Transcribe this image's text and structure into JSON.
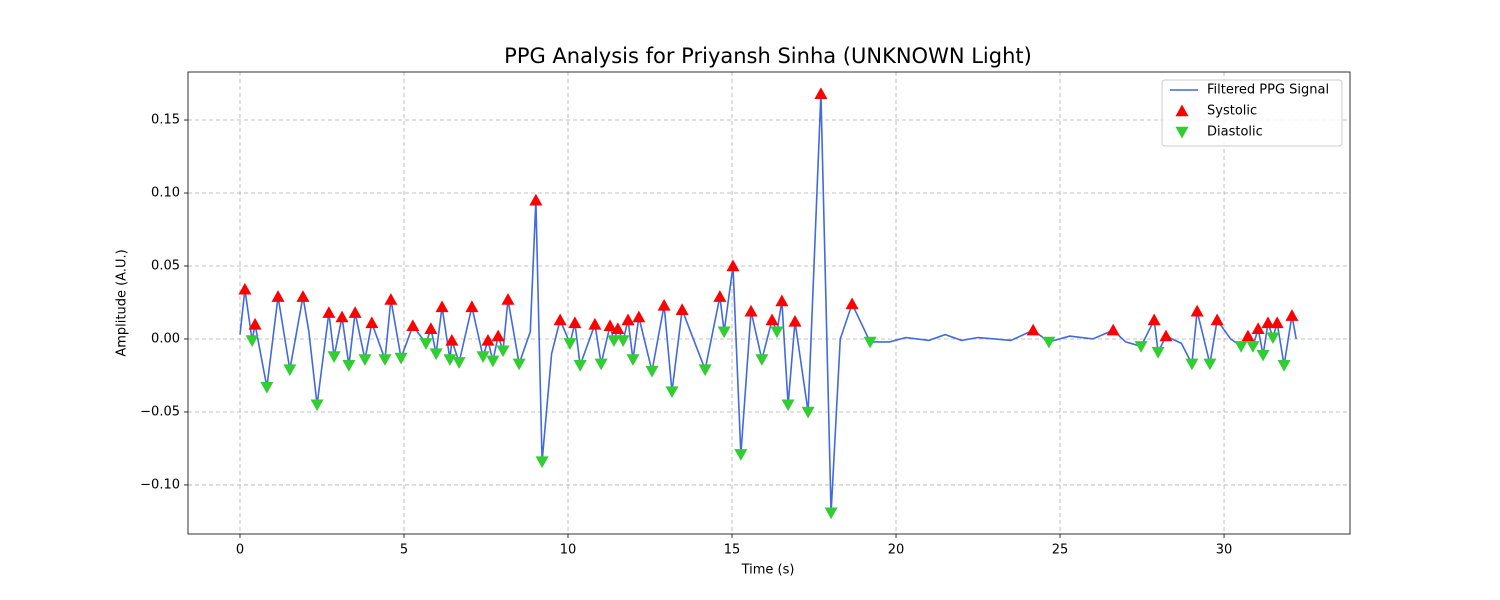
{
  "chart_data": {
    "type": "line",
    "title": "PPG Analysis for Priyansh Sinha (UNKNOWN Light)",
    "x_label": "Time (s)",
    "y_label": "Amplitude (A.U.)",
    "xlim": [
      -1.585,
      33.84
    ],
    "ylim": [
      -0.1336,
      0.1829
    ],
    "xticks": [
      0,
      5,
      10,
      15,
      20,
      25,
      30
    ],
    "yticks": [
      {
        "value": -0.1,
        "label": "−0.10"
      },
      {
        "value": -0.05,
        "label": "−0.05"
      },
      {
        "value": 0,
        "label": "0.00"
      },
      {
        "value": 0.05,
        "label": "0.05"
      },
      {
        "value": 0.1,
        "label": "0.10"
      },
      {
        "value": 0.15,
        "label": "0.15"
      }
    ],
    "grid": true,
    "legend": "upper right",
    "series": [
      {
        "name": "Filtered PPG Signal",
        "type": "line",
        "color": "#4169e1",
        "x": [
          0,
          0.15,
          0.37,
          0.46,
          0.82,
          1.16,
          1.52,
          1.92,
          2.1,
          2.35,
          2.71,
          2.87,
          3.11,
          3.32,
          3.51,
          3.81,
          4.02,
          4.42,
          4.6,
          4.91,
          5.27,
          5.67,
          5.82,
          5.98,
          6.16,
          6.4,
          6.46,
          6.68,
          7.07,
          7.41,
          7.56,
          7.71,
          7.87,
          8.02,
          8.17,
          8.51,
          8.85,
          9.02,
          9.21,
          9.5,
          9.76,
          10.06,
          10.21,
          10.37,
          10.82,
          11.01,
          11.28,
          11.4,
          11.52,
          11.68,
          11.83,
          11.98,
          12.16,
          12.56,
          12.93,
          13.17,
          13.48,
          14.18,
          14.63,
          14.76,
          15.03,
          15.27,
          15.58,
          15.91,
          16.22,
          16.37,
          16.52,
          16.71,
          16.92,
          17.32,
          17.71,
          18.02,
          18.3,
          18.66,
          19.21,
          19.8,
          20.3,
          21.0,
          21.5,
          22.0,
          22.5,
          23.0,
          23.5,
          24.18,
          24.66,
          25.3,
          26.0,
          26.62,
          27.0,
          27.47,
          27.87,
          27.99,
          28.23,
          28.7,
          29.02,
          29.18,
          29.57,
          29.79,
          30.2,
          30.52,
          30.73,
          30.88,
          31.04,
          31.19,
          31.34,
          31.49,
          31.62,
          31.83,
          32.07,
          32.2
        ],
        "values": [
          0.003,
          0.034,
          -0.001,
          0.01,
          -0.033,
          0.029,
          -0.021,
          0.029,
          0.005,
          -0.045,
          0.018,
          -0.012,
          0.015,
          -0.018,
          0.018,
          -0.014,
          0.011,
          -0.014,
          0.027,
          -0.013,
          0.009,
          -0.003,
          0.007,
          -0.01,
          0.022,
          -0.014,
          -0.001,
          -0.016,
          0.022,
          -0.012,
          -0.001,
          -0.015,
          0.002,
          -0.008,
          0.027,
          -0.017,
          0.005,
          0.095,
          -0.084,
          -0.01,
          0.013,
          -0.003,
          0.011,
          -0.018,
          0.01,
          -0.017,
          0.009,
          -0.001,
          0.007,
          -0.001,
          0.013,
          -0.014,
          0.015,
          -0.022,
          0.023,
          -0.036,
          0.02,
          -0.021,
          0.029,
          0.005,
          0.05,
          -0.079,
          0.019,
          -0.014,
          0.013,
          0.005,
          0.026,
          -0.045,
          0.012,
          -0.05,
          0.168,
          -0.119,
          0.0,
          0.024,
          -0.002,
          -0.002,
          0.001,
          -0.001,
          0.003,
          -0.001,
          0.001,
          0.0,
          -0.001,
          0.006,
          -0.002,
          0.002,
          0.0,
          0.006,
          -0.002,
          -0.005,
          0.013,
          -0.009,
          0.002,
          -0.003,
          -0.017,
          0.019,
          -0.017,
          0.013,
          0.0,
          -0.005,
          0.002,
          -0.005,
          0.007,
          -0.011,
          0.011,
          0.001,
          0.011,
          -0.018,
          0.016,
          0.0
        ]
      },
      {
        "name": "Systolic",
        "type": "scatter",
        "marker": "triangle-up",
        "color": "#ff0000",
        "x": [
          0.15,
          0.46,
          1.16,
          1.92,
          2.71,
          3.11,
          3.51,
          4.02,
          4.6,
          5.27,
          5.82,
          6.16,
          6.46,
          7.07,
          7.56,
          7.87,
          8.17,
          9.02,
          9.76,
          10.21,
          10.82,
          11.28,
          11.52,
          11.83,
          12.16,
          12.93,
          13.48,
          14.63,
          15.03,
          15.58,
          16.22,
          16.52,
          16.92,
          17.71,
          18.66,
          24.18,
          26.62,
          27.87,
          28.23,
          29.18,
          29.79,
          30.73,
          31.04,
          31.34,
          31.62,
          32.07
        ],
        "values": [
          0.034,
          0.01,
          0.029,
          0.029,
          0.018,
          0.015,
          0.018,
          0.011,
          0.027,
          0.009,
          0.007,
          0.022,
          -0.001,
          0.022,
          -0.001,
          0.002,
          0.027,
          0.095,
          0.013,
          0.011,
          0.01,
          0.009,
          0.007,
          0.013,
          0.015,
          0.023,
          0.02,
          0.029,
          0.05,
          0.019,
          0.013,
          0.026,
          0.012,
          0.168,
          0.024,
          0.006,
          0.006,
          0.013,
          0.002,
          0.019,
          0.013,
          0.002,
          0.007,
          0.011,
          0.011,
          0.016
        ]
      },
      {
        "name": "Diastolic",
        "type": "scatter",
        "marker": "triangle-down",
        "color": "#32cd32",
        "x": [
          0.37,
          0.82,
          1.52,
          2.35,
          2.87,
          3.32,
          3.81,
          4.42,
          4.91,
          5.67,
          5.98,
          6.4,
          6.68,
          7.41,
          7.71,
          8.02,
          8.51,
          9.21,
          10.06,
          10.37,
          11.01,
          11.4,
          11.68,
          11.98,
          12.56,
          13.17,
          14.18,
          14.76,
          15.27,
          15.91,
          16.37,
          16.71,
          17.32,
          18.02,
          19.21,
          24.66,
          27.47,
          27.99,
          29.02,
          29.57,
          30.52,
          30.88,
          31.19,
          31.49,
          31.83
        ],
        "values": [
          -0.001,
          -0.033,
          -0.021,
          -0.045,
          -0.012,
          -0.018,
          -0.014,
          -0.014,
          -0.013,
          -0.003,
          -0.01,
          -0.014,
          -0.016,
          -0.012,
          -0.015,
          -0.008,
          -0.017,
          -0.084,
          -0.003,
          -0.018,
          -0.017,
          -0.001,
          -0.001,
          -0.014,
          -0.022,
          -0.036,
          -0.021,
          0.005,
          -0.079,
          -0.014,
          0.005,
          -0.045,
          -0.05,
          -0.119,
          -0.002,
          -0.002,
          -0.005,
          -0.009,
          -0.017,
          -0.017,
          -0.005,
          -0.005,
          -0.011,
          0.001,
          -0.018
        ]
      }
    ]
  }
}
